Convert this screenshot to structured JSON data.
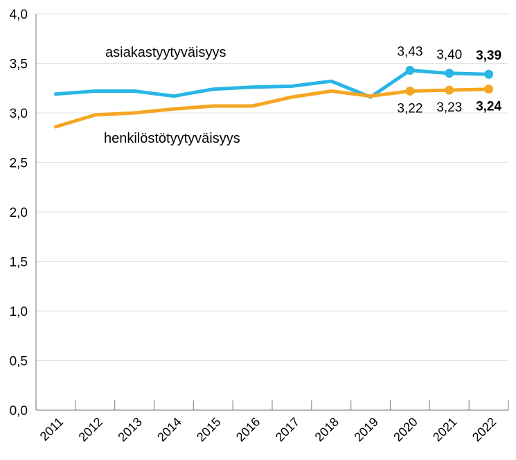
{
  "chart_data": {
    "type": "line",
    "title": "",
    "xlabel": "",
    "ylabel": "",
    "ylim": [
      0,
      4
    ],
    "yticks": [
      0,
      0.5,
      1,
      1.5,
      2,
      2.5,
      3,
      3.5,
      4
    ],
    "ytick_labels": [
      "0,0",
      "0,5",
      "1,0",
      "1,5",
      "2,0",
      "2,5",
      "3,0",
      "3,5",
      "4,0"
    ],
    "grid": "horizontal",
    "categories": [
      "2011",
      "2012",
      "2013",
      "2014",
      "2015",
      "2016",
      "2017",
      "2018",
      "2019",
      "2020",
      "2021",
      "2022"
    ],
    "series": [
      {
        "name": "asiakastyytyväisyys",
        "color": "#29b6e6",
        "values": [
          3.19,
          3.22,
          3.22,
          3.17,
          3.24,
          3.26,
          3.27,
          3.32,
          3.16,
          3.43,
          3.4,
          3.39
        ],
        "markers_from_index": 9,
        "data_labels": [
          {
            "index": 9,
            "text": "3,43",
            "bold": false
          },
          {
            "index": 10,
            "text": "3,40",
            "bold": false
          },
          {
            "index": 11,
            "text": "3,39",
            "bold": true
          }
        ]
      },
      {
        "name": "henkilöstötyytyväisyys",
        "color": "#f5a623",
        "values": [
          2.86,
          2.98,
          3.0,
          3.04,
          3.07,
          3.07,
          3.16,
          3.22,
          3.17,
          3.22,
          3.23,
          3.24
        ],
        "markers_from_index": 9,
        "data_labels": [
          {
            "index": 9,
            "text": "3,22",
            "bold": false
          },
          {
            "index": 10,
            "text": "3,23",
            "bold": false
          },
          {
            "index": 11,
            "text": "3,24",
            "bold": true
          }
        ]
      }
    ]
  }
}
